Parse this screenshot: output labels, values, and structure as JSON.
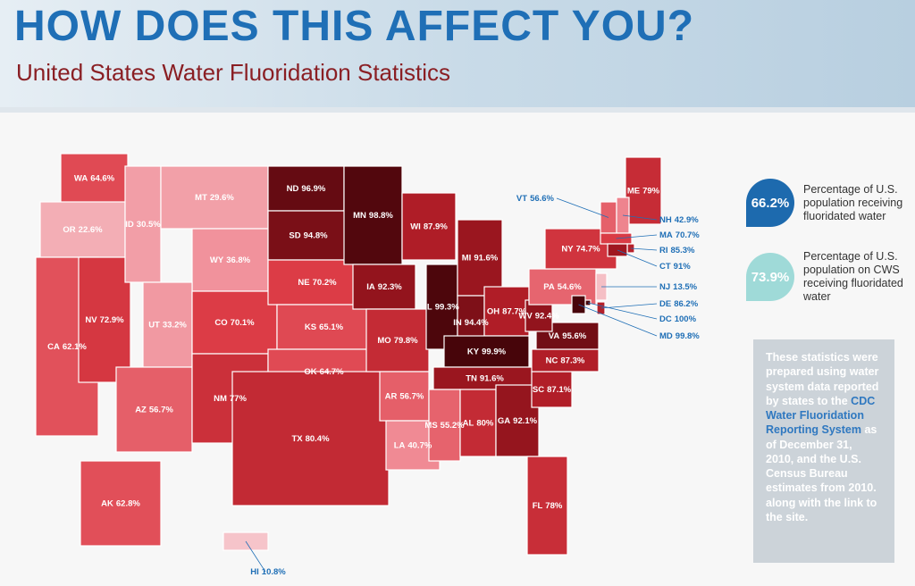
{
  "header": {
    "title": "HOW DOES THIS AFFECT YOU?",
    "subtitle": "United States Water Fluoridation Statistics"
  },
  "states": [
    {
      "code": "WA",
      "value": 64.6,
      "label": "64.6%"
    },
    {
      "code": "OR",
      "value": 22.6,
      "label": "22.6%"
    },
    {
      "code": "CA",
      "value": 62.1,
      "label": "62.1%"
    },
    {
      "code": "NV",
      "value": 72.9,
      "label": "72.9%"
    },
    {
      "code": "ID",
      "value": 30.5,
      "label": "30.5%"
    },
    {
      "code": "MT",
      "value": 29.6,
      "label": "29.6%"
    },
    {
      "code": "WY",
      "value": 36.8,
      "label": "36.8%"
    },
    {
      "code": "UT",
      "value": 33.2,
      "label": "33.2%"
    },
    {
      "code": "CO",
      "value": 70.1,
      "label": "70.1%"
    },
    {
      "code": "AZ",
      "value": 56.7,
      "label": "56.7%"
    },
    {
      "code": "NM",
      "value": 77,
      "label": "77%"
    },
    {
      "code": "ND",
      "value": 96.9,
      "label": "96.9%"
    },
    {
      "code": "SD",
      "value": 94.8,
      "label": "94.8%"
    },
    {
      "code": "NE",
      "value": 70.2,
      "label": "70.2%"
    },
    {
      "code": "KS",
      "value": 65.1,
      "label": "65.1%"
    },
    {
      "code": "OK",
      "value": 64.7,
      "label": "64.7%"
    },
    {
      "code": "TX",
      "value": 80.4,
      "label": "80.4%"
    },
    {
      "code": "MN",
      "value": 98.8,
      "label": "98.8%"
    },
    {
      "code": "IA",
      "value": 92.3,
      "label": "92.3%"
    },
    {
      "code": "MO",
      "value": 79.8,
      "label": "79.8%"
    },
    {
      "code": "AR",
      "value": 56.7,
      "label": "56.7%"
    },
    {
      "code": "LA",
      "value": 40.7,
      "label": "40.7%"
    },
    {
      "code": "WI",
      "value": 87.9,
      "label": "87.9%"
    },
    {
      "code": "IL",
      "value": 99.3,
      "label": "99.3%"
    },
    {
      "code": "MI",
      "value": 91.6,
      "label": "91.6%"
    },
    {
      "code": "IN",
      "value": 94.4,
      "label": "94.4%"
    },
    {
      "code": "OH",
      "value": 87.7,
      "label": "87.7%"
    },
    {
      "code": "KY",
      "value": 99.9,
      "label": "99.9%"
    },
    {
      "code": "TN",
      "value": 91.6,
      "label": "91.6%"
    },
    {
      "code": "MS",
      "value": 55.2,
      "label": "55.2%"
    },
    {
      "code": "AL",
      "value": 80,
      "label": "80%"
    },
    {
      "code": "GA",
      "value": 92.1,
      "label": "92.1%"
    },
    {
      "code": "FL",
      "value": 78,
      "label": "78%"
    },
    {
      "code": "SC",
      "value": 87.1,
      "label": "87.1%"
    },
    {
      "code": "NC",
      "value": 87.3,
      "label": "87.3%"
    },
    {
      "code": "VA",
      "value": 95.6,
      "label": "95.6%"
    },
    {
      "code": "WV",
      "value": 92.4,
      "label": "92.4%"
    },
    {
      "code": "PA",
      "value": 54.6,
      "label": "54.6%"
    },
    {
      "code": "NY",
      "value": 74.7,
      "label": "74.7%"
    },
    {
      "code": "ME",
      "value": 79,
      "label": "79%"
    },
    {
      "code": "VT",
      "value": 56.6,
      "label": "56.6%"
    },
    {
      "code": "NH",
      "value": 42.9,
      "label": "42.9%"
    },
    {
      "code": "MA",
      "value": 70.7,
      "label": "70.7%"
    },
    {
      "code": "RI",
      "value": 85.3,
      "label": "85.3%"
    },
    {
      "code": "CT",
      "value": 91,
      "label": "91%"
    },
    {
      "code": "NJ",
      "value": 13.5,
      "label": "13.5%"
    },
    {
      "code": "DE",
      "value": 86.2,
      "label": "86.2%"
    },
    {
      "code": "DC",
      "value": 100,
      "label": "100%"
    },
    {
      "code": "MD",
      "value": 99.8,
      "label": "99.8%"
    },
    {
      "code": "AK",
      "value": 62.8,
      "label": "62.8%"
    },
    {
      "code": "HI",
      "value": 10.8,
      "label": "10.8%"
    }
  ],
  "stats": [
    {
      "value": "66.2%",
      "text": "Percentage of U.S. population receiving fluoridated water",
      "color": "#1d6aae"
    },
    {
      "value": "73.9%",
      "text": "Percentage of U.S. population on CWS receiving fluoridated water",
      "color": "#9fdad8"
    }
  ],
  "note": {
    "before": "These statistics were prepared using water system data reported by states to the",
    "link": "CDC Water Fluoridation Reporting System",
    "after": "as of December 31, 2010, and the U.S. Census Bureau estimates from 2010. along with the link to the site."
  }
}
